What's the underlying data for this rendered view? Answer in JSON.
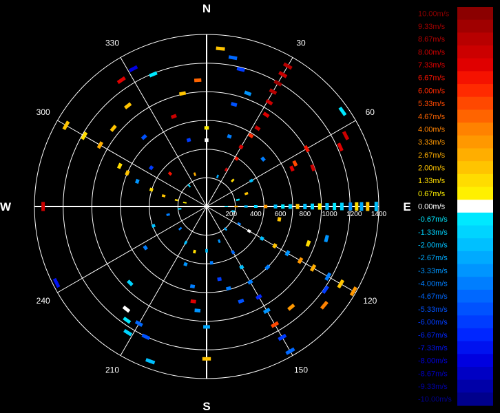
{
  "chart_data": {
    "type": "polar radial-velocity scatter",
    "cardinals": [
      {
        "label": "N",
        "bearing": 0
      },
      {
        "label": "E",
        "bearing": 90
      },
      {
        "label": "S",
        "bearing": 180
      },
      {
        "label": "W",
        "bearing": 270
      }
    ],
    "bearing_labels": [
      "30",
      "60",
      "120",
      "150",
      "210",
      "240",
      "300",
      "330"
    ],
    "bearing_values": [
      30,
      60,
      120,
      150,
      210,
      240,
      300,
      330
    ],
    "range_ticks": [
      "200",
      "400",
      "600",
      "800",
      "1000",
      "1200",
      "1400"
    ],
    "range_values": [
      200,
      400,
      600,
      800,
      1000,
      1200,
      1400
    ],
    "range_max": 1400,
    "rings": 6,
    "grid": true,
    "colorbar": {
      "position": "right",
      "unit": "m/s",
      "labels": [
        "10.00m/s",
        "9.33m/s",
        "8.67m/s",
        "8.00m/s",
        "7.33m/s",
        "6.67m/s",
        "6.00m/s",
        "5.33m/s",
        "4.67m/s",
        "4.00m/s",
        "3.33m/s",
        "2.67m/s",
        "2.00m/s",
        "1.33m/s",
        "0.67m/s",
        "0.00m/s",
        "-0.67m/s",
        "-1.33m/s",
        "-2.00m/s",
        "-2.67m/s",
        "-3.33m/s",
        "-4.00m/s",
        "-4.67m/s",
        "-5.33m/s",
        "-6.00m/s",
        "-6.67m/s",
        "-7.33m/s",
        "-8.00m/s",
        "-8.67m/s",
        "-9.33m/s",
        "-10.00m/s"
      ],
      "colors": [
        "#8b0000",
        "#a00000",
        "#b80000",
        "#cc0000",
        "#e00000",
        "#f51200",
        "#ff2a00",
        "#ff4800",
        "#ff6400",
        "#ff8200",
        "#ff9800",
        "#ffae00",
        "#ffc400",
        "#ffdc00",
        "#fff000",
        "#ffffff",
        "#00e8ff",
        "#00d4ff",
        "#00c0ff",
        "#00aaff",
        "#0095ff",
        "#007eff",
        "#0068ff",
        "#0052ff",
        "#003cff",
        "#0026ff",
        "#0012f0",
        "#0000e0",
        "#0000c4",
        "#0000a8",
        "#00008c"
      ]
    },
    "points": [
      {
        "bearing": 90,
        "range": 1380,
        "v": -2.0
      },
      {
        "bearing": 90,
        "range": 1310,
        "v": 2.0
      },
      {
        "bearing": 90,
        "range": 1260,
        "v": -2.7
      },
      {
        "bearing": 90,
        "range": 1220,
        "v": 1.33
      },
      {
        "bearing": 90,
        "range": 1170,
        "v": -3.3
      },
      {
        "bearing": 90,
        "range": 1100,
        "v": -1.33
      },
      {
        "bearing": 90,
        "range": 1040,
        "v": -0.67
      },
      {
        "bearing": 90,
        "range": 980,
        "v": -2.0
      },
      {
        "bearing": 90,
        "range": 920,
        "v": 0.67
      },
      {
        "bearing": 90,
        "range": 860,
        "v": -1.33
      },
      {
        "bearing": 90,
        "range": 800,
        "v": -2.0
      },
      {
        "bearing": 90,
        "range": 740,
        "v": 2.0
      },
      {
        "bearing": 90,
        "range": 680,
        "v": -1.33
      },
      {
        "bearing": 90,
        "range": 620,
        "v": -0.67
      },
      {
        "bearing": 90,
        "range": 560,
        "v": -2.0
      },
      {
        "bearing": 90,
        "range": 480,
        "v": 3.3
      },
      {
        "bearing": 90,
        "range": 400,
        "v": -1.33
      },
      {
        "bearing": 90,
        "range": 320,
        "v": -2.0
      },
      {
        "bearing": 90,
        "range": 240,
        "v": 2.7
      },
      {
        "bearing": 90,
        "range": 160,
        "v": -0.67
      },
      {
        "bearing": 270,
        "range": 1330,
        "v": 8.0
      },
      {
        "bearing": 30,
        "range": 1320,
        "v": 8.67
      },
      {
        "bearing": 30,
        "range": 1240,
        "v": 8.0
      },
      {
        "bearing": 30,
        "range": 1160,
        "v": 9.33
      },
      {
        "bearing": 30,
        "range": 1080,
        "v": 8.67
      },
      {
        "bearing": 31,
        "range": 990,
        "v": 8.0
      },
      {
        "bearing": 33,
        "range": 890,
        "v": 7.33
      },
      {
        "bearing": 33,
        "range": 760,
        "v": 8.0
      },
      {
        "bearing": 32,
        "range": 680,
        "v": 6.0
      },
      {
        "bearing": 30,
        "range": 560,
        "v": 7.33
      },
      {
        "bearing": 32,
        "range": 460,
        "v": 6.67
      },
      {
        "bearing": 28,
        "range": 340,
        "v": 8.0
      },
      {
        "bearing": 63,
        "range": 1270,
        "v": 8.0
      },
      {
        "bearing": 66,
        "range": 1190,
        "v": 7.33
      },
      {
        "bearing": 60,
        "range": 940,
        "v": 6.67
      },
      {
        "bearing": 64,
        "range": 800,
        "v": 5.33
      },
      {
        "bearing": 66,
        "range": 760,
        "v": 7.33
      },
      {
        "bearing": 70,
        "range": 920,
        "v": 8.0
      },
      {
        "bearing": 55,
        "range": 1350,
        "v": -0.67
      },
      {
        "bearing": 50,
        "range": 600,
        "v": -4.0
      },
      {
        "bearing": 5,
        "range": 1290,
        "v": 2.0
      },
      {
        "bearing": 10,
        "range": 1230,
        "v": -4.7
      },
      {
        "bearing": 14,
        "range": 1150,
        "v": -6.0
      },
      {
        "bearing": 15,
        "range": 860,
        "v": -5.33
      },
      {
        "bearing": 20,
        "range": 980,
        "v": -3.3
      },
      {
        "bearing": 18,
        "range": 600,
        "v": -4.0
      },
      {
        "bearing": 356,
        "range": 1030,
        "v": 4.67
      },
      {
        "bearing": 348,
        "range": 940,
        "v": 2.0
      },
      {
        "bearing": 338,
        "range": 1160,
        "v": -0.67
      },
      {
        "bearing": 332,
        "range": 1270,
        "v": -8.0
      },
      {
        "bearing": 326,
        "range": 1240,
        "v": 7.33
      },
      {
        "bearing": 322,
        "range": 1040,
        "v": 2.0
      },
      {
        "bearing": 340,
        "range": 780,
        "v": 8.0
      },
      {
        "bearing": 345,
        "range": 560,
        "v": -6.0
      },
      {
        "bearing": 300,
        "range": 1320,
        "v": 2.0
      },
      {
        "bearing": 300,
        "range": 1150,
        "v": 1.33
      },
      {
        "bearing": 300,
        "range": 1000,
        "v": 2.7
      },
      {
        "bearing": 295,
        "range": 780,
        "v": 1.33
      },
      {
        "bearing": 293,
        "range": 700,
        "v": 2.0
      },
      {
        "bearing": 290,
        "range": 600,
        "v": -3.3
      },
      {
        "bearing": 287,
        "range": 470,
        "v": 1.33
      },
      {
        "bearing": 284,
        "range": 360,
        "v": 2.0
      },
      {
        "bearing": 282,
        "range": 250,
        "v": 1.33
      },
      {
        "bearing": 280,
        "range": 180,
        "v": 0.67
      },
      {
        "bearing": 310,
        "range": 990,
        "v": 2.0
      },
      {
        "bearing": 318,
        "range": 760,
        "v": -5.33
      },
      {
        "bearing": 305,
        "range": 550,
        "v": -6.0
      },
      {
        "bearing": 312,
        "range": 400,
        "v": 6.67
      },
      {
        "bearing": 120,
        "range": 1380,
        "v": 3.3
      },
      {
        "bearing": 120,
        "range": 1260,
        "v": 2.0
      },
      {
        "bearing": 120,
        "range": 1140,
        "v": -4.0
      },
      {
        "bearing": 120,
        "range": 1000,
        "v": 2.7
      },
      {
        "bearing": 120,
        "range": 880,
        "v": 3.3
      },
      {
        "bearing": 120,
        "range": 760,
        "v": -3.3
      },
      {
        "bearing": 120,
        "range": 640,
        "v": 2.0
      },
      {
        "bearing": 120,
        "range": 520,
        "v": -2.0
      },
      {
        "bearing": 120,
        "range": 400,
        "v": 0.0
      },
      {
        "bearing": 118,
        "range": 300,
        "v": -4.0
      },
      {
        "bearing": 130,
        "range": 1250,
        "v": 4.0
      },
      {
        "bearing": 125,
        "range": 1180,
        "v": -6.0
      },
      {
        "bearing": 110,
        "range": 880,
        "v": 1.33
      },
      {
        "bearing": 105,
        "range": 1010,
        "v": -3.3
      },
      {
        "bearing": 135,
        "range": 700,
        "v": -4.0
      },
      {
        "bearing": 100,
        "range": 600,
        "v": 2.0
      },
      {
        "bearing": 150,
        "range": 1360,
        "v": -4.67
      },
      {
        "bearing": 150,
        "range": 1230,
        "v": -6.0
      },
      {
        "bearing": 150,
        "range": 1110,
        "v": 5.33
      },
      {
        "bearing": 150,
        "range": 980,
        "v": -3.3
      },
      {
        "bearing": 150,
        "range": 850,
        "v": -6.67
      },
      {
        "bearing": 150,
        "range": 710,
        "v": -4.0
      },
      {
        "bearing": 150,
        "range": 570,
        "v": -2.0
      },
      {
        "bearing": 150,
        "range": 430,
        "v": -4.67
      },
      {
        "bearing": 140,
        "range": 1070,
        "v": 3.3
      },
      {
        "bearing": 160,
        "range": 820,
        "v": -5.33
      },
      {
        "bearing": 165,
        "range": 690,
        "v": -4.0
      },
      {
        "bearing": 170,
        "range": 600,
        "v": -6.0
      },
      {
        "bearing": 180,
        "range": 1240,
        "v": 2.0
      },
      {
        "bearing": 180,
        "range": 980,
        "v": -2.7
      },
      {
        "bearing": 185,
        "range": 850,
        "v": -3.3
      },
      {
        "bearing": 188,
        "range": 780,
        "v": 7.33
      },
      {
        "bearing": 190,
        "range": 660,
        "v": -4.0
      },
      {
        "bearing": 200,
        "range": 1340,
        "v": -2.0
      },
      {
        "bearing": 205,
        "range": 1170,
        "v": -5.33
      },
      {
        "bearing": 210,
        "range": 1100,
        "v": -4.67
      },
      {
        "bearing": 215,
        "range": 1130,
        "v": -0.67
      },
      {
        "bearing": 218,
        "range": 1060,
        "v": 0.0
      },
      {
        "bearing": 225,
        "range": 880,
        "v": -1.33
      },
      {
        "bearing": 212,
        "range": 1210,
        "v": -1.33
      },
      {
        "bearing": 200,
        "range": 500,
        "v": -3.3
      },
      {
        "bearing": 195,
        "range": 380,
        "v": 1.33
      },
      {
        "bearing": 243,
        "range": 1370,
        "v": -7.33
      },
      {
        "bearing": 236,
        "range": 600,
        "v": -4.0
      },
      {
        "bearing": 250,
        "range": 460,
        "v": -2.0
      },
      {
        "bearing": 258,
        "range": 320,
        "v": -4.0
      },
      {
        "bearing": 265,
        "range": 220,
        "v": -1.33
      },
      {
        "bearing": 60,
        "range": 420,
        "v": -2.0
      },
      {
        "bearing": 72,
        "range": 340,
        "v": 2.0
      },
      {
        "bearing": 78,
        "range": 260,
        "v": -0.67
      },
      {
        "bearing": 45,
        "range": 300,
        "v": 1.33
      },
      {
        "bearing": 20,
        "range": 260,
        "v": -2.7
      },
      {
        "bearing": 340,
        "range": 280,
        "v": 2.7
      },
      {
        "bearing": 320,
        "range": 220,
        "v": -1.33
      },
      {
        "bearing": 230,
        "range": 280,
        "v": -4.0
      },
      {
        "bearing": 210,
        "range": 340,
        "v": -2.0
      },
      {
        "bearing": 160,
        "range": 300,
        "v": -3.3
      },
      {
        "bearing": 140,
        "range": 240,
        "v": -2.7
      },
      {
        "bearing": 100,
        "range": 220,
        "v": -1.33
      },
      {
        "bearing": 0,
        "range": 640,
        "v": 0.67
      },
      {
        "bearing": 0,
        "range": 540,
        "v": 0.0
      },
      {
        "bearing": 180,
        "range": 360,
        "v": -2.0
      },
      {
        "bearing": 175,
        "range": 460,
        "v": -4.0
      }
    ]
  }
}
